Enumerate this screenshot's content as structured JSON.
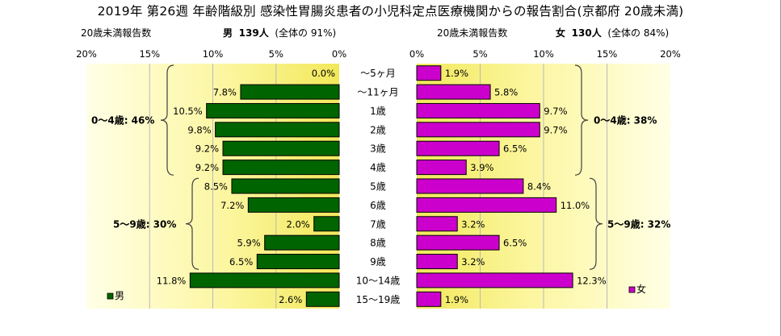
{
  "title": "2019年 第26週 年齢階級別 感染性胃腸炎患者の小児科定点医療機関からの報告割合(京都府 20歳未満)",
  "male_header": {
    "left": "20歳未満報告数",
    "label": "男",
    "count": "139人",
    "share": "(全体の 91%)"
  },
  "female_header": {
    "left": "20歳未満報告数",
    "label": "女",
    "count": "130人",
    "share": "(全体の 84%)"
  },
  "chart_data": [
    {
      "type": "bar",
      "orientation": "horizontal",
      "direction": "right-to-left",
      "series": [
        {
          "name": "男",
          "color": "#006400",
          "values": [
            0.0,
            7.8,
            10.5,
            9.8,
            9.2,
            9.2,
            8.5,
            7.2,
            2.0,
            5.9,
            6.5,
            11.8,
            2.6
          ]
        }
      ],
      "categories": [
        "〜5ヶ月",
        "〜11ヶ月",
        "1歳",
        "2歳",
        "3歳",
        "4歳",
        "5歳",
        "6歳",
        "7歳",
        "8歳",
        "9歳",
        "10〜14歳",
        "15〜19歳"
      ],
      "data_labels": [
        "0.0%",
        "7.8%",
        "10.5%",
        "9.8%",
        "9.2%",
        "9.2%",
        "8.5%",
        "7.2%",
        "2.0%",
        "5.9%",
        "6.5%",
        "11.8%",
        "2.6%"
      ],
      "xlim": [
        0,
        20
      ],
      "x_ticks": [
        "20%",
        "15%",
        "10%",
        "5%",
        "0%"
      ],
      "grid": true,
      "legend": "bottom-left",
      "group_annotations": [
        {
          "label": "0〜4歳: 46%",
          "from": "〜5ヶ月",
          "to": "4歳"
        },
        {
          "label": "5〜9歳: 30%",
          "from": "5歳",
          "to": "9歳"
        }
      ]
    },
    {
      "type": "bar",
      "orientation": "horizontal",
      "direction": "left-to-right",
      "series": [
        {
          "name": "女",
          "color": "#CC00CC",
          "values": [
            1.9,
            5.8,
            9.7,
            9.7,
            6.5,
            3.9,
            8.4,
            11.0,
            3.2,
            6.5,
            3.2,
            12.3,
            1.9
          ]
        }
      ],
      "categories": [
        "〜5ヶ月",
        "〜11ヶ月",
        "1歳",
        "2歳",
        "3歳",
        "4歳",
        "5歳",
        "6歳",
        "7歳",
        "8歳",
        "9歳",
        "10〜14歳",
        "15〜19歳"
      ],
      "data_labels": [
        "1.9%",
        "5.8%",
        "9.7%",
        "9.7%",
        "6.5%",
        "3.9%",
        "8.4%",
        "11.0%",
        "3.2%",
        "6.5%",
        "3.2%",
        "12.3%",
        "1.9%"
      ],
      "xlim": [
        0,
        20
      ],
      "x_ticks": [
        "0%",
        "5%",
        "10%",
        "15%",
        "20%"
      ],
      "grid": true,
      "legend": "bottom-right",
      "group_annotations": [
        {
          "label": "0〜4歳: 38%",
          "from": "〜5ヶ月",
          "to": "4歳"
        },
        {
          "label": "5〜9歳: 32%",
          "from": "5歳",
          "to": "9歳"
        }
      ]
    }
  ]
}
